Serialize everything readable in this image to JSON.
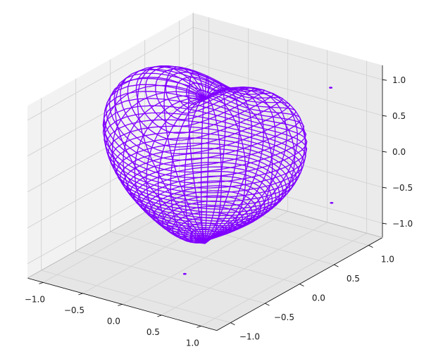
{
  "chart_data": {
    "type": "wireframe_3d",
    "title": "",
    "x_ticks": [
      "−1.0",
      "−0.5",
      "0.0",
      "0.5",
      "1.0"
    ],
    "y_ticks": [
      "−1.0",
      "−0.5",
      "0.0",
      "0.5",
      "1.0"
    ],
    "z_ticks": [
      "−1.0",
      "−0.5",
      "0.0",
      "0.5",
      "1.0"
    ],
    "xlim": [
      -1.2,
      1.2
    ],
    "ylim": [
      -1.2,
      1.2
    ],
    "zlim": [
      -1.2,
      1.2
    ],
    "surface": "heart",
    "line_color": "#8000ff",
    "pane_colors": [
      "#f2f2f2",
      "#e6e6e6",
      "#ebebeb"
    ],
    "grid": true
  }
}
